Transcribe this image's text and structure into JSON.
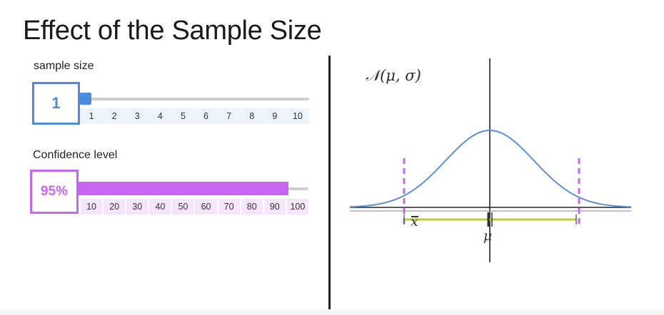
{
  "title": "Effect of the Sample Size",
  "sample_size": {
    "label": "sample size",
    "value": "1",
    "ticks": [
      "1",
      "2",
      "3",
      "4",
      "5",
      "6",
      "7",
      "8",
      "9",
      "10"
    ],
    "color": "#4a8ce0",
    "position_fraction": 0.0
  },
  "confidence": {
    "label": "Confidence level",
    "value": "95%",
    "ticks": [
      "10",
      "20",
      "30",
      "40",
      "50",
      "60",
      "70",
      "80",
      "90",
      "100"
    ],
    "color": "#c766f0",
    "tick_bg": "#f6e6fb",
    "fill_fraction": 0.95
  },
  "plot": {
    "formula": "𝒩(μ, σ)",
    "mu_label": "μ",
    "xbar_label": "x",
    "curve_color": "#5b8fd8",
    "interval_color": "#b9cf33",
    "bounds_color": "#c766f0"
  }
}
